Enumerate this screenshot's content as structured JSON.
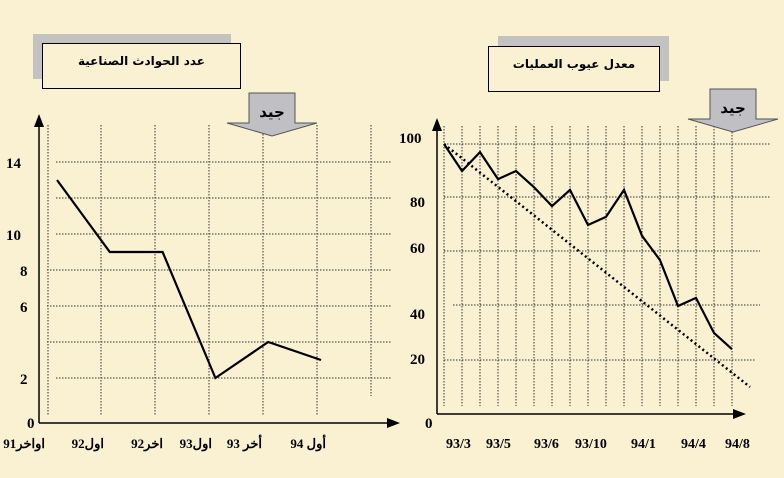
{
  "chart_data": [
    {
      "type": "line",
      "title": "عدد الحوادث الصناعية",
      "badge": "جيد",
      "categories": [
        "اواخر91",
        "اول92",
        "اخر92",
        "اول93",
        "أخر 93",
        "أول 94"
      ],
      "series": [
        {
          "name": "accidents",
          "values": [
            13,
            9,
            9,
            2,
            4,
            3
          ]
        }
      ],
      "yticks": [
        0,
        2,
        6,
        8,
        10,
        14
      ],
      "ylim": [
        0,
        16
      ],
      "grid": true
    },
    {
      "type": "line",
      "title": "معدل عيوب العمليات",
      "badge": "جيد",
      "xtick_labels": [
        "93/3",
        "93/5",
        "93/6",
        "93/10",
        "94/1",
        "94/4",
        "94/8"
      ],
      "series": [
        {
          "name": "defect-rate",
          "values": [
            100,
            90,
            97,
            87,
            90,
            84,
            77,
            83,
            70,
            73,
            83,
            66,
            57,
            40,
            43,
            30,
            24
          ]
        },
        {
          "name": "trend",
          "style": "dotted",
          "values": [
            100,
            10
          ],
          "x": [
            0,
            17
          ]
        }
      ],
      "yticks": [
        0,
        20,
        40,
        60,
        80,
        100
      ],
      "ylim": [
        0,
        110
      ],
      "grid": true
    }
  ]
}
